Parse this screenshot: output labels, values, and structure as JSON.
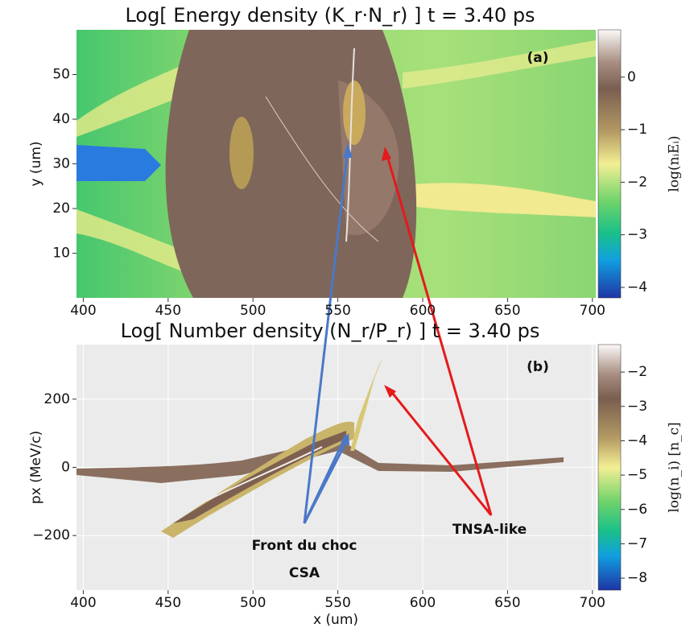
{
  "chart_data": [
    {
      "type": "heatmap",
      "title": "Log[ Energy density (K_r·N_r) ]  t = 3.40 ps",
      "panel_label": "(a)",
      "xlabel": "x (um)",
      "ylabel": "y (um)",
      "xlim": [
        396,
        702
      ],
      "xticks": [
        400,
        450,
        500,
        550,
        600,
        650,
        700
      ],
      "ylim": [
        0,
        60
      ],
      "yticks": [
        10,
        20,
        30,
        40,
        50
      ],
      "grid": false,
      "colorbar_label": "log(nᵢEᵢ)",
      "clim": [
        -4.2,
        0.9
      ],
      "cticks": [
        0,
        {
          "value": -1,
          "label": "−1"
        },
        {
          "value": -2,
          "label": "−2"
        },
        {
          "value": -3,
          "label": "−3"
        },
        {
          "value": -4,
          "label": "−4"
        }
      ]
    },
    {
      "type": "heatmap",
      "title": "Log[ Number density (N_r/P_r) ]  t = 3.40 ps",
      "panel_label": "(b)",
      "xlabel": "x (um)",
      "ylabel": "px (MeV/c)",
      "xlim": [
        396,
        702
      ],
      "xticks": [
        400,
        450,
        500,
        550,
        600,
        650,
        700
      ],
      "ylim": [
        -360,
        360
      ],
      "yticks": [
        {
          "value": -200,
          "label": "−200"
        },
        0,
        200
      ],
      "grid": true,
      "colorbar_label": "log(n_i) [n_c]",
      "clim": [
        -8.35,
        -1.2
      ],
      "cticks": [
        {
          "value": -2,
          "label": "−2"
        },
        {
          "value": -3,
          "label": "−3"
        },
        {
          "value": -4,
          "label": "−4"
        },
        {
          "value": -5,
          "label": "−5"
        },
        {
          "value": -6,
          "label": "−6"
        },
        {
          "value": -7,
          "label": "−7"
        },
        {
          "value": -8,
          "label": "−8"
        }
      ],
      "annotations": [
        "Front du choc",
        "CSA",
        "TNSA-like"
      ]
    }
  ]
}
